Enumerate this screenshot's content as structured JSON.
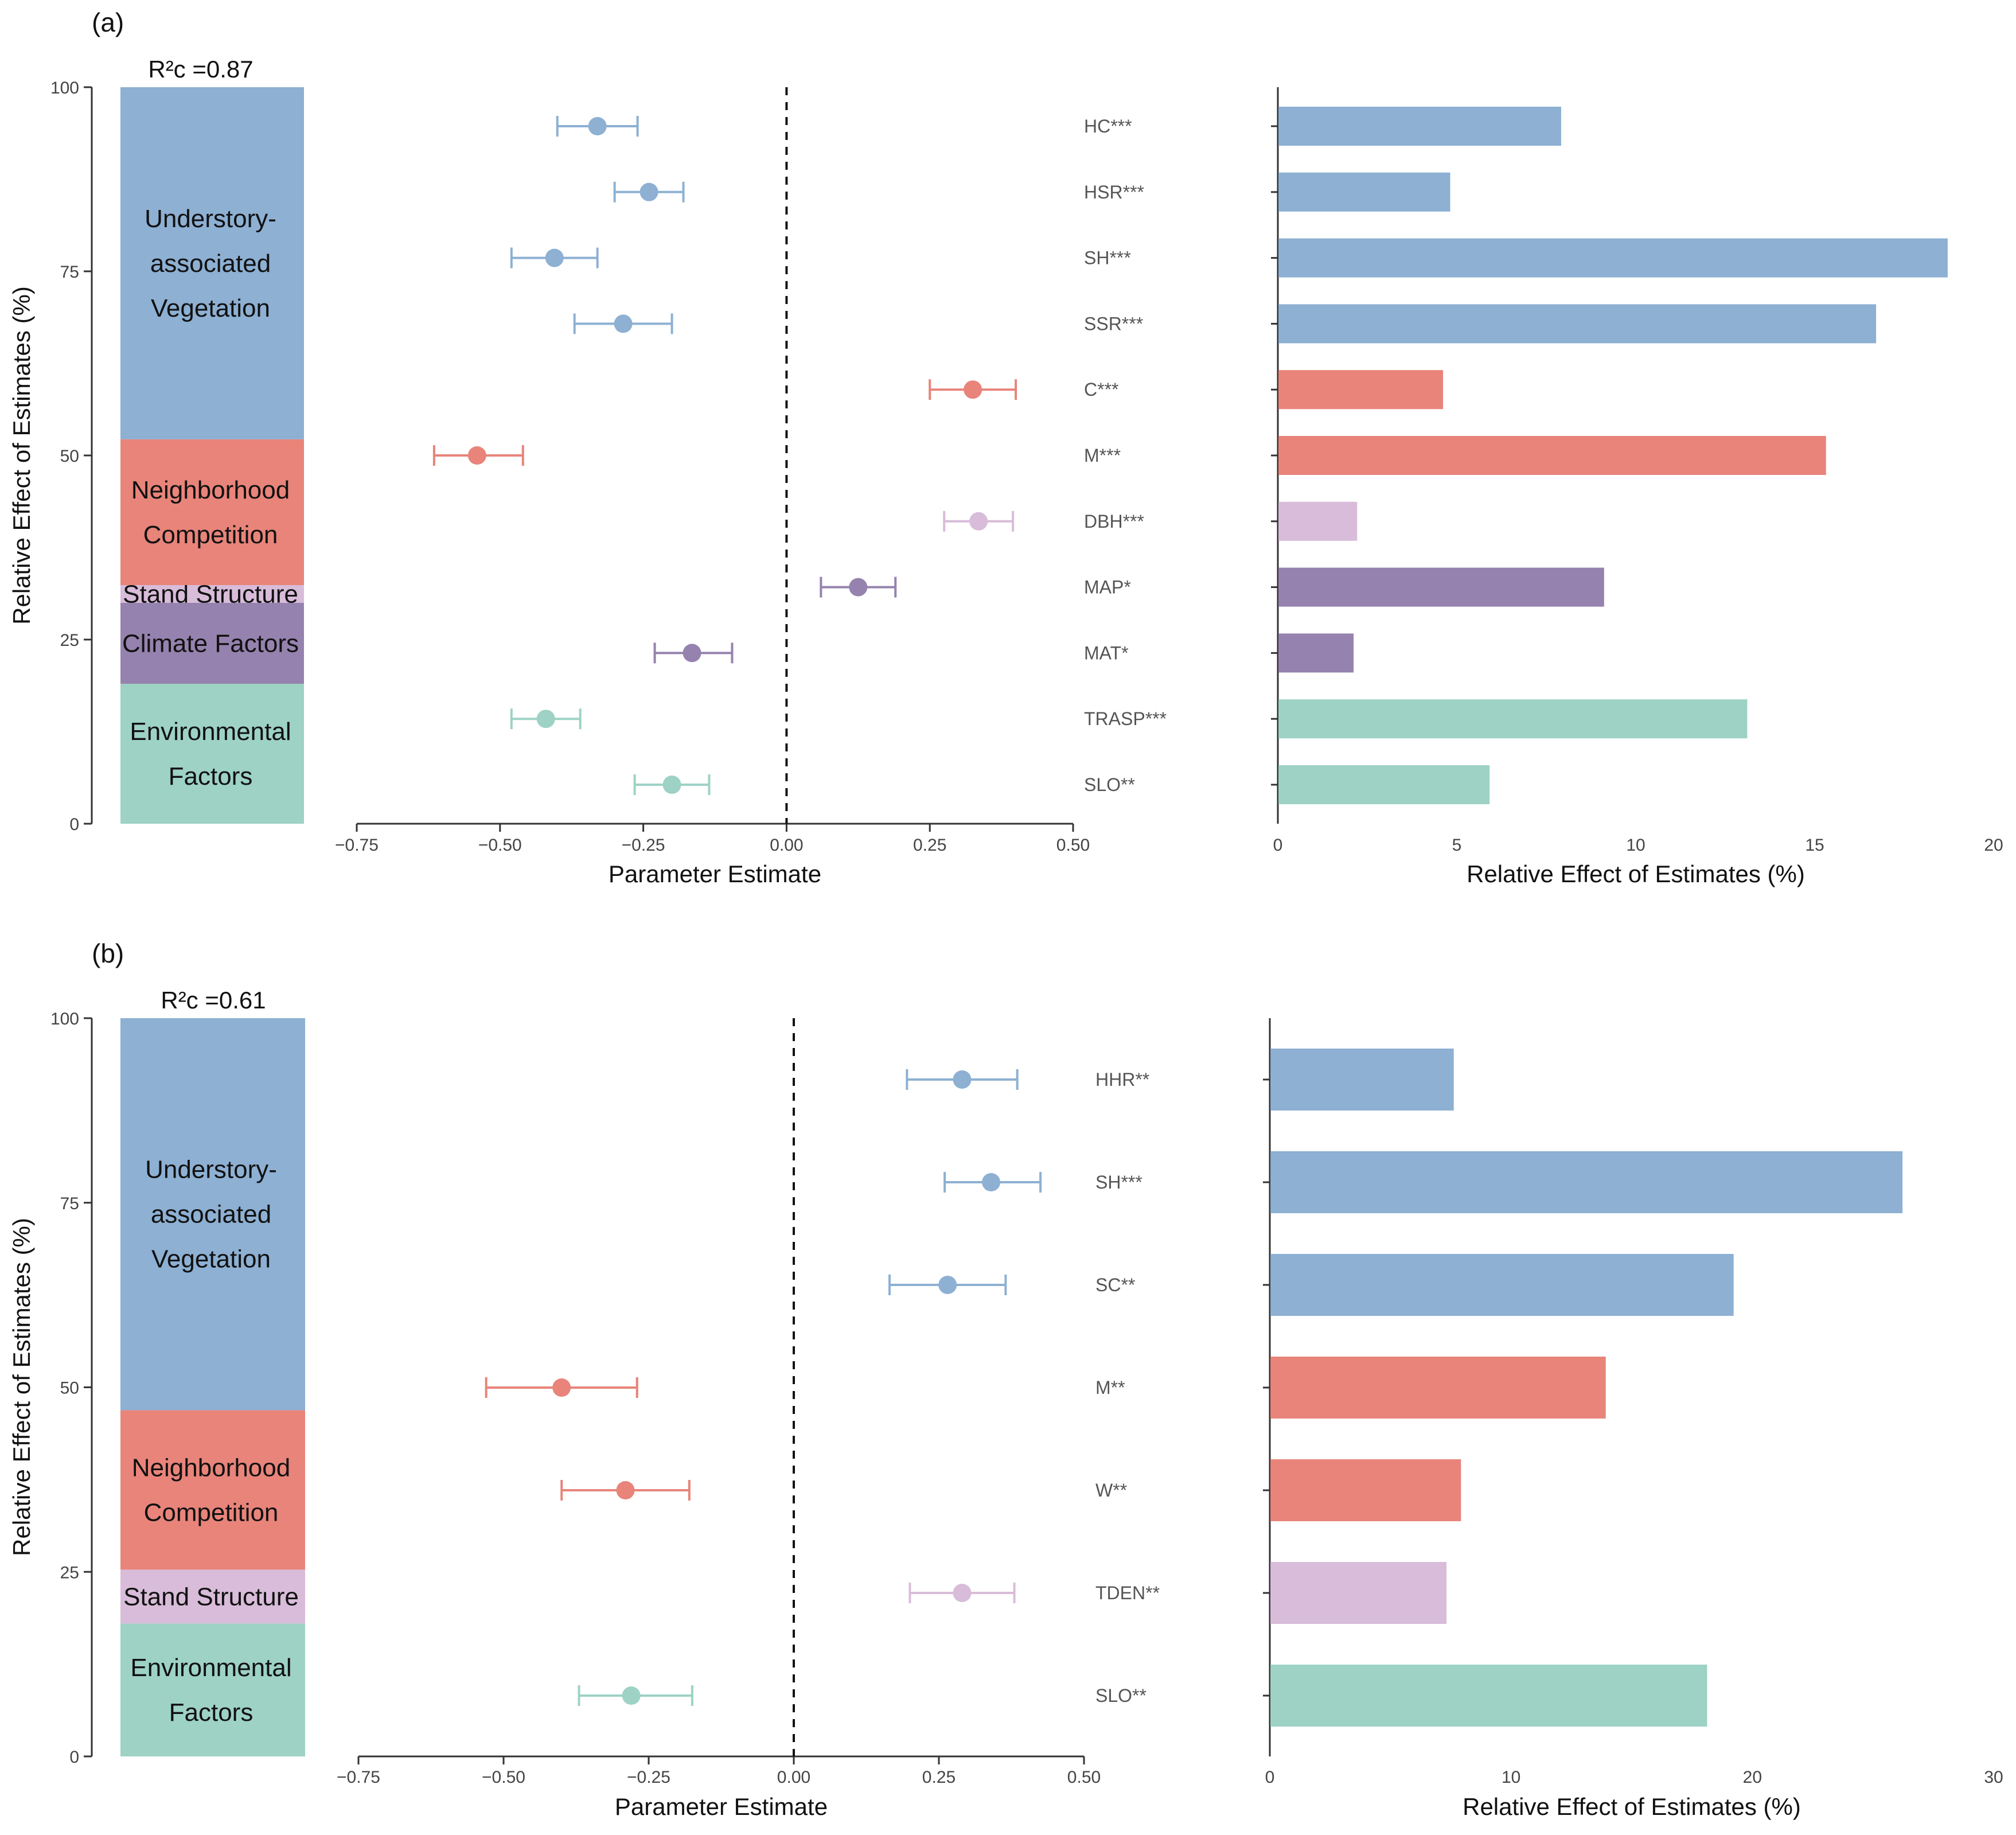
{
  "colors": {
    "understory": "#8db0d3",
    "competition": "#e8847a",
    "stand": "#d8bcd9",
    "climate": "#9682ae",
    "environment": "#9dd2c5"
  },
  "chart_data": [
    {
      "type": "composite",
      "panel": "(a)",
      "r2_label": "R²c =0.87",
      "stacked_bar": {
        "ylabel": "Relative Effect of Estimates (%)",
        "ylim": [
          0,
          100
        ],
        "yticks": [
          "0",
          "25",
          "50",
          "75",
          "100"
        ],
        "groups": [
          {
            "name": "Environmental Factors",
            "lines": [
              "Environmental",
              "Factors"
            ],
            "value": 19,
            "color_key": "environment"
          },
          {
            "name": "Climate Factors",
            "lines": [
              "Climate Factors"
            ],
            "value": 11,
            "color_key": "climate"
          },
          {
            "name": "Stand Structure",
            "lines": [
              "Stand Structure"
            ],
            "value": 2.4,
            "color_key": "stand"
          },
          {
            "name": "Neighborhood Competition",
            "lines": [
              "Neighborhood",
              "Competition"
            ],
            "value": 19.8,
            "color_key": "competition"
          },
          {
            "name": "Understory-associated Vegetation",
            "lines": [
              "Understory-",
              "associated",
              "Vegetation"
            ],
            "value": 47.8,
            "color_key": "understory"
          }
        ]
      },
      "forest": {
        "xlabel": "Parameter Estimate",
        "xlim": [
          -0.75,
          0.5
        ],
        "xticks": [
          "−0.75",
          "−0.50",
          "−0.25",
          "0.00",
          "0.25",
          "0.50"
        ],
        "variables": [
          {
            "label": "HC***",
            "estimate": -0.33,
            "ci": [
              -0.4,
              -0.26
            ],
            "color_key": "understory"
          },
          {
            "label": "HSR***",
            "estimate": -0.24,
            "ci": [
              -0.3,
              -0.18
            ],
            "color_key": "understory"
          },
          {
            "label": "SH***",
            "estimate": -0.405,
            "ci": [
              -0.48,
              -0.33
            ],
            "color_key": "understory"
          },
          {
            "label": "SSR***",
            "estimate": -0.285,
            "ci": [
              -0.37,
              -0.2
            ],
            "color_key": "understory"
          },
          {
            "label": "C***",
            "estimate": 0.325,
            "ci": [
              0.25,
              0.4
            ],
            "color_key": "competition"
          },
          {
            "label": "M***",
            "estimate": -0.54,
            "ci": [
              -0.615,
              -0.46
            ],
            "color_key": "competition"
          },
          {
            "label": "DBH***",
            "estimate": 0.335,
            "ci": [
              0.275,
              0.395
            ],
            "color_key": "stand"
          },
          {
            "label": "MAP*",
            "estimate": 0.125,
            "ci": [
              0.06,
              0.19
            ],
            "color_key": "climate"
          },
          {
            "label": "MAT*",
            "estimate": -0.165,
            "ci": [
              -0.23,
              -0.095
            ],
            "color_key": "climate"
          },
          {
            "label": "TRASP***",
            "estimate": -0.42,
            "ci": [
              -0.48,
              -0.36
            ],
            "color_key": "environment"
          },
          {
            "label": "SLO**",
            "estimate": -0.2,
            "ci": [
              -0.265,
              -0.135
            ],
            "color_key": "environment"
          }
        ]
      },
      "relative_bars": {
        "xlabel": "Relative Effect of Estimates (%)",
        "xlim": [
          0,
          20
        ],
        "xticks": [
          "0",
          "5",
          "10",
          "15",
          "20"
        ],
        "values": [
          7.9,
          4.8,
          18.7,
          16.7,
          4.6,
          15.3,
          2.2,
          9.1,
          2.1,
          13.1,
          5.9
        ]
      }
    },
    {
      "type": "composite",
      "panel": "(b)",
      "r2_label": "R²c =0.61",
      "stacked_bar": {
        "ylabel": "Relative Effect of Estimates (%)",
        "ylim": [
          0,
          100
        ],
        "yticks": [
          "0",
          "25",
          "50",
          "75",
          "100"
        ],
        "groups": [
          {
            "name": "Environmental Factors",
            "lines": [
              "Environmental",
              "Factors"
            ],
            "value": 18,
            "color_key": "environment"
          },
          {
            "name": "Stand Structure",
            "lines": [
              "Stand Structure"
            ],
            "value": 7.3,
            "color_key": "stand"
          },
          {
            "name": "Neighborhood Competition",
            "lines": [
              "Neighborhood",
              "Competition"
            ],
            "value": 21.6,
            "color_key": "competition"
          },
          {
            "name": "Understory-associated Vegetation",
            "lines": [
              "Understory-",
              "associated",
              "Vegetation"
            ],
            "value": 53.1,
            "color_key": "understory"
          }
        ]
      },
      "forest": {
        "xlabel": "Parameter Estimate",
        "xlim": [
          -0.75,
          0.5
        ],
        "xticks": [
          "−0.75",
          "−0.50",
          "−0.25",
          "0.00",
          "0.25",
          "0.50"
        ],
        "variables": [
          {
            "label": "HHR**",
            "estimate": 0.29,
            "ci": [
              0.195,
              0.385
            ],
            "color_key": "understory"
          },
          {
            "label": "SH***",
            "estimate": 0.34,
            "ci": [
              0.26,
              0.425
            ],
            "color_key": "understory"
          },
          {
            "label": "SC**",
            "estimate": 0.265,
            "ci": [
              0.165,
              0.365
            ],
            "color_key": "understory"
          },
          {
            "label": "M**",
            "estimate": -0.4,
            "ci": [
              -0.53,
              -0.27
            ],
            "color_key": "competition"
          },
          {
            "label": "W**",
            "estimate": -0.29,
            "ci": [
              -0.4,
              -0.18
            ],
            "color_key": "competition"
          },
          {
            "label": "TDEN**",
            "estimate": 0.29,
            "ci": [
              0.2,
              0.38
            ],
            "color_key": "stand"
          },
          {
            "label": "SLO**",
            "estimate": -0.28,
            "ci": [
              -0.37,
              -0.175
            ],
            "color_key": "environment"
          }
        ]
      },
      "relative_bars": {
        "xlabel": "Relative Effect of Estimates (%)",
        "xlim": [
          0,
          30
        ],
        "xticks": [
          "0",
          "10",
          "20",
          "30"
        ],
        "values": [
          7.6,
          26.2,
          19.2,
          13.9,
          7.9,
          7.3,
          18.1
        ]
      }
    }
  ]
}
